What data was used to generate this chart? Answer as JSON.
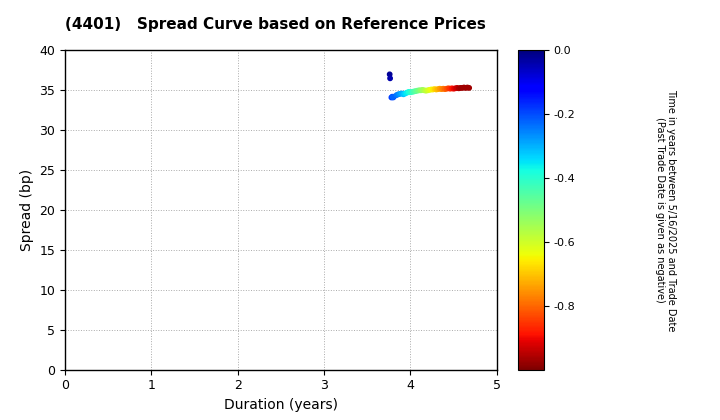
{
  "title": "(4401)   Spread Curve based on Reference Prices",
  "xlabel": "Duration (years)",
  "ylabel": "Spread (bp)",
  "xlim": [
    0,
    5
  ],
  "ylim": [
    0,
    40
  ],
  "xticks": [
    0,
    1,
    2,
    3,
    4,
    5
  ],
  "yticks": [
    0,
    5,
    10,
    15,
    20,
    25,
    30,
    35,
    40
  ],
  "colorbar_label_line1": "Time in years between 5/16/2025 and Trade Date",
  "colorbar_label_line2": "(Past Trade Date is given as negative)",
  "colorbar_vmin": -1.0,
  "colorbar_vmax": 0.0,
  "colorbar_ticks": [
    0.0,
    -0.2,
    -0.4,
    -0.6,
    -0.8
  ],
  "background_color": "#ffffff",
  "grid_color": "#aaaaaa",
  "scatter_points": {
    "duration": [
      3.78,
      3.79,
      3.8,
      3.81,
      3.795,
      3.84,
      3.86,
      3.88,
      3.9,
      3.92,
      3.94,
      3.96,
      3.98,
      4.0,
      4.02,
      4.04,
      4.06,
      4.08,
      4.1,
      4.12,
      4.14,
      4.16,
      4.18,
      4.2,
      4.22,
      4.24,
      4.26,
      4.28,
      4.3,
      4.32,
      4.34,
      4.36,
      4.38,
      4.4,
      4.42,
      4.44,
      4.46,
      4.48,
      4.5,
      4.52,
      4.54,
      4.56,
      4.58,
      4.6,
      4.62,
      4.64,
      4.66,
      4.68,
      3.76,
      3.765
    ],
    "spread": [
      34.1,
      34.2,
      34.1,
      34.2,
      34.15,
      34.4,
      34.5,
      34.55,
      34.6,
      34.5,
      34.6,
      34.7,
      34.8,
      34.75,
      34.8,
      34.85,
      34.9,
      34.95,
      35.0,
      35.0,
      35.05,
      35.0,
      34.95,
      35.0,
      35.05,
      35.1,
      35.1,
      35.15,
      35.1,
      35.15,
      35.2,
      35.15,
      35.2,
      35.15,
      35.2,
      35.25,
      35.2,
      35.25,
      35.2,
      35.25,
      35.3,
      35.25,
      35.3,
      35.3,
      35.35,
      35.3,
      35.35,
      35.3,
      37.0,
      36.5
    ],
    "time_val": [
      -0.18,
      -0.19,
      -0.2,
      -0.21,
      -0.22,
      -0.24,
      -0.26,
      -0.28,
      -0.3,
      -0.32,
      -0.34,
      -0.36,
      -0.38,
      -0.4,
      -0.42,
      -0.44,
      -0.46,
      -0.48,
      -0.5,
      -0.52,
      -0.54,
      -0.56,
      -0.58,
      -0.6,
      -0.62,
      -0.64,
      -0.66,
      -0.68,
      -0.7,
      -0.72,
      -0.74,
      -0.76,
      -0.78,
      -0.8,
      -0.82,
      -0.84,
      -0.86,
      -0.88,
      -0.9,
      -0.92,
      -0.94,
      -0.96,
      -0.97,
      -0.97,
      -0.97,
      -0.97,
      -0.97,
      -0.97,
      -0.02,
      -0.04
    ]
  }
}
